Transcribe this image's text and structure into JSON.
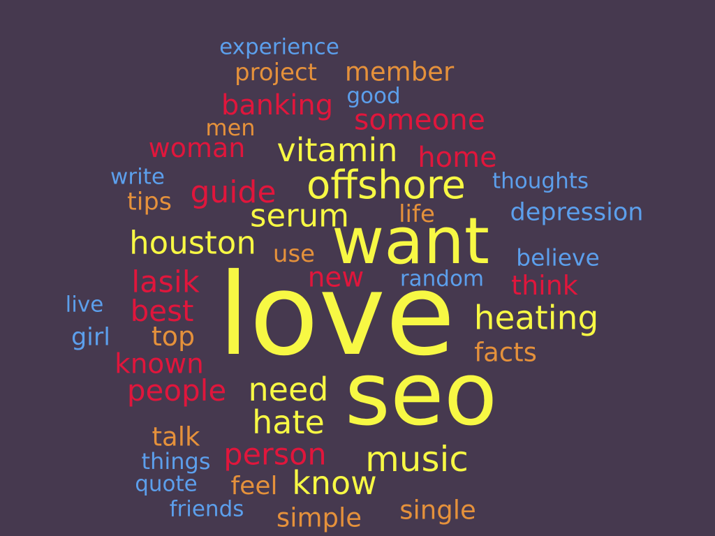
{
  "colors": {
    "background": "#46394f",
    "yellow": "#f7f844",
    "red": "#e0163c",
    "orange": "#e5913b",
    "blue": "#5c9fec"
  },
  "words": [
    {
      "text": "experience",
      "color": "blue"
    },
    {
      "text": "project",
      "color": "orange"
    },
    {
      "text": "member",
      "color": "orange"
    },
    {
      "text": "good",
      "color": "blue"
    },
    {
      "text": "banking",
      "color": "red"
    },
    {
      "text": "someone",
      "color": "red"
    },
    {
      "text": "men",
      "color": "orange"
    },
    {
      "text": "woman",
      "color": "red"
    },
    {
      "text": "vitamin",
      "color": "yellow"
    },
    {
      "text": "home",
      "color": "red"
    },
    {
      "text": "write",
      "color": "blue"
    },
    {
      "text": "offshore",
      "color": "yellow"
    },
    {
      "text": "thoughts",
      "color": "blue"
    },
    {
      "text": "guide",
      "color": "red"
    },
    {
      "text": "tips",
      "color": "orange"
    },
    {
      "text": "serum",
      "color": "yellow"
    },
    {
      "text": "life",
      "color": "orange"
    },
    {
      "text": "depression",
      "color": "blue"
    },
    {
      "text": "houston",
      "color": "yellow"
    },
    {
      "text": "want",
      "color": "yellow"
    },
    {
      "text": "use",
      "color": "orange"
    },
    {
      "text": "believe",
      "color": "blue"
    },
    {
      "text": "lasik",
      "color": "red"
    },
    {
      "text": "new",
      "color": "red"
    },
    {
      "text": "random",
      "color": "blue"
    },
    {
      "text": "think",
      "color": "red"
    },
    {
      "text": "live",
      "color": "blue"
    },
    {
      "text": "best",
      "color": "red"
    },
    {
      "text": "love",
      "color": "yellow"
    },
    {
      "text": "heating",
      "color": "yellow"
    },
    {
      "text": "girl",
      "color": "blue"
    },
    {
      "text": "top",
      "color": "orange"
    },
    {
      "text": "facts",
      "color": "orange"
    },
    {
      "text": "known",
      "color": "red"
    },
    {
      "text": "people",
      "color": "red"
    },
    {
      "text": "need",
      "color": "yellow"
    },
    {
      "text": "seo",
      "color": "yellow"
    },
    {
      "text": "hate",
      "color": "yellow"
    },
    {
      "text": "talk",
      "color": "orange"
    },
    {
      "text": "person",
      "color": "red"
    },
    {
      "text": "music",
      "color": "yellow"
    },
    {
      "text": "things",
      "color": "blue"
    },
    {
      "text": "know",
      "color": "yellow"
    },
    {
      "text": "quote",
      "color": "blue"
    },
    {
      "text": "feel",
      "color": "orange"
    },
    {
      "text": "friends",
      "color": "blue"
    },
    {
      "text": "simple",
      "color": "orange"
    },
    {
      "text": "single",
      "color": "orange"
    }
  ]
}
